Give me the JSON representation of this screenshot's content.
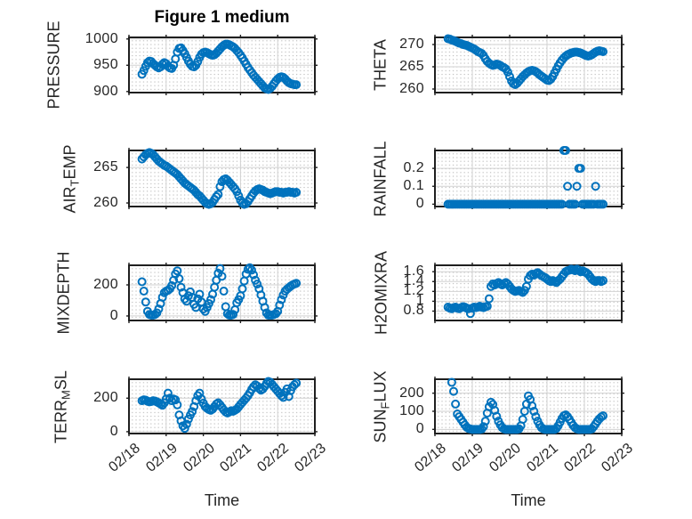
{
  "figure": {
    "title": "Figure 1 medium",
    "background": "#ffffff",
    "marker_color": "#0072BD",
    "axes_box_color": "#1f1f1f",
    "major_grid_color": "#d2d2d2",
    "minor_grid_dot_color": "#bcbcbc",
    "text_color": "#262626"
  },
  "x_axis": {
    "label": "Time",
    "tick_labels": [
      "02/18",
      "02/19",
      "02/20",
      "02/21",
      "02/22",
      "02/23"
    ],
    "range_days": [
      0,
      5
    ]
  },
  "chart_data": [
    {
      "type": "scatter",
      "title": "Figure 1 medium",
      "ylabel": "PRESSURE",
      "ylabel_segments": [
        {
          "text": "PRESSURE",
          "sub": false
        }
      ],
      "yticks": [
        900,
        950,
        1000
      ],
      "ytick_labels": [
        "900",
        "950",
        "1000"
      ],
      "ylim": [
        898,
        1003
      ],
      "x_start_day": 0.35,
      "x_step_day": 0.05,
      "values": [
        933,
        940,
        948,
        955,
        958,
        957,
        953,
        950,
        947,
        945,
        947,
        952,
        955,
        953,
        948,
        945,
        944,
        950,
        962,
        975,
        982,
        983,
        978,
        972,
        965,
        958,
        952,
        948,
        947,
        950,
        957,
        965,
        971,
        974,
        975,
        974,
        972,
        970,
        969,
        970,
        973,
        977,
        981,
        985,
        988,
        990,
        990,
        989,
        987,
        985,
        982,
        978,
        974,
        969,
        964,
        958,
        952,
        946,
        941,
        936,
        931,
        927,
        923,
        919,
        915,
        911,
        907,
        905,
        904,
        906,
        910,
        915,
        920,
        924,
        927,
        928,
        927,
        924,
        920,
        917,
        915,
        914,
        913,
        913
      ]
    },
    {
      "type": "scatter",
      "ylabel": "THETA",
      "ylabel_segments": [
        {
          "text": "THETA",
          "sub": false
        }
      ],
      "yticks": [
        260,
        265,
        270
      ],
      "ytick_labels": [
        "260",
        "265",
        "270"
      ],
      "ylim": [
        259.2,
        271.6
      ],
      "x_start_day": 0.35,
      "x_step_day": 0.05,
      "values": [
        271.3,
        271.2,
        271.0,
        270.9,
        270.7,
        270.5,
        270.3,
        270.2,
        270.0,
        269.9,
        269.8,
        269.6,
        269.4,
        269.2,
        269.0,
        268.7,
        268.4,
        268.2,
        268.0,
        267.5,
        266.8,
        266.2,
        265.8,
        265.5,
        265.3,
        265.4,
        265.6,
        265.5,
        265.3,
        265.0,
        264.8,
        264.5,
        263.8,
        262.8,
        261.8,
        261.2,
        261.0,
        261.3,
        261.8,
        262.3,
        262.8,
        263.2,
        263.6,
        263.9,
        264.1,
        264.2,
        264.1,
        263.9,
        263.6,
        263.2,
        262.9,
        262.6,
        262.3,
        262.0,
        261.9,
        262.2,
        262.8,
        263.6,
        264.4,
        265.2,
        265.9,
        266.5,
        267.0,
        267.4,
        267.7,
        267.9,
        268.1,
        268.2,
        268.3,
        268.3,
        268.2,
        268.1,
        267.9,
        267.7,
        267.5,
        267.4,
        267.5,
        267.7,
        268.0,
        268.3,
        268.5,
        268.6,
        268.5,
        268.4
      ]
    },
    {
      "type": "scatter",
      "ylabel": "AIR_TEMP",
      "ylabel_segments": [
        {
          "text": "AIR",
          "sub": false
        },
        {
          "text": "T",
          "sub": true
        },
        {
          "text": "EMP",
          "sub": false
        }
      ],
      "yticks": [
        260,
        265
      ],
      "ytick_labels": [
        "260",
        "265"
      ],
      "ylim": [
        259.5,
        267.4
      ],
      "x_start_day": 0.35,
      "x_step_day": 0.05,
      "values": [
        266.2,
        266.5,
        266.8,
        267.0,
        267.1,
        267.0,
        266.8,
        266.5,
        266.2,
        265.9,
        265.7,
        265.5,
        265.3,
        265.2,
        265.0,
        264.8,
        264.6,
        264.4,
        264.2,
        264.0,
        263.7,
        263.4,
        263.1,
        262.8,
        262.6,
        262.4,
        262.2,
        262.0,
        261.8,
        261.5,
        261.2,
        261.0,
        260.7,
        260.4,
        260.1,
        259.9,
        259.8,
        259.9,
        260.1,
        260.5,
        260.9,
        261.2,
        262.3,
        263.0,
        263.3,
        263.4,
        263.2,
        262.9,
        262.6,
        262.3,
        262.0,
        261.6,
        261.0,
        260.4,
        260.0,
        259.8,
        259.9,
        260.2,
        260.6,
        261.0,
        261.4,
        261.7,
        261.9,
        262.0,
        261.9,
        261.8,
        261.6,
        261.5,
        261.4,
        261.3,
        261.4,
        261.5,
        261.6,
        261.6,
        261.5,
        261.5,
        261.4,
        261.5,
        261.5,
        261.6,
        261.5,
        261.5,
        261.4,
        261.5
      ]
    },
    {
      "type": "scatter",
      "ylabel": "RAINFALL",
      "ylabel_segments": [
        {
          "text": "RAINFALL",
          "sub": false
        }
      ],
      "yticks": [
        0,
        0.1,
        0.2
      ],
      "ytick_labels": [
        "0",
        "0.1",
        "0.2"
      ],
      "ylim": [
        -0.013,
        0.3
      ],
      "x_start_day": 0.35,
      "x_step_day": 0.05,
      "values": [
        0,
        0,
        0,
        0,
        0,
        0,
        0,
        0,
        0,
        0,
        0,
        0,
        0,
        0,
        0,
        0,
        0,
        0,
        0,
        0,
        0,
        0,
        0,
        0,
        0,
        0,
        0,
        0,
        0,
        0,
        0,
        0,
        0,
        0,
        0,
        0,
        0,
        0,
        0,
        0,
        0,
        0,
        0,
        0,
        0,
        0,
        0,
        0,
        0,
        0,
        0,
        0,
        0,
        0,
        0,
        0,
        0,
        0,
        0,
        0,
        0,
        0,
        0.3,
        0.3,
        0.1,
        0,
        0,
        0,
        0,
        0.1,
        0.2,
        0.2,
        0,
        0,
        0,
        0,
        0,
        0,
        0,
        0.1,
        0,
        0,
        0,
        0
      ]
    },
    {
      "type": "scatter",
      "ylabel": "MIXDEPTH",
      "ylabel_segments": [
        {
          "text": "MIXDEPTH",
          "sub": false
        }
      ],
      "yticks": [
        0,
        200
      ],
      "ytick_labels": [
        "0",
        "200"
      ],
      "ylim": [
        -29,
        326
      ],
      "x_start_day": 0.35,
      "x_step_day": 0.05,
      "values": [
        220,
        160,
        90,
        30,
        10,
        5,
        5,
        10,
        20,
        45,
        80,
        120,
        150,
        160,
        165,
        175,
        195,
        230,
        270,
        290,
        240,
        185,
        150,
        110,
        95,
        130,
        155,
        120,
        75,
        55,
        110,
        140,
        90,
        45,
        30,
        55,
        80,
        105,
        140,
        185,
        230,
        275,
        305,
        255,
        160,
        60,
        15,
        5,
        5,
        10,
        40,
        85,
        105,
        130,
        175,
        225,
        270,
        300,
        310,
        295,
        265,
        230,
        205,
        175,
        135,
        95,
        55,
        20,
        5,
        5,
        5,
        10,
        15,
        30,
        70,
        105,
        135,
        160,
        172,
        182,
        192,
        200,
        205,
        210
      ]
    },
    {
      "type": "scatter",
      "ylabel": "H2OMIXRA",
      "ylabel_segments": [
        {
          "text": "H2OMIXRA",
          "sub": false
        }
      ],
      "yticks": [
        0.8,
        1,
        1.2,
        1.4,
        1.6
      ],
      "ytick_labels": [
        "0.8",
        "1",
        "1.2",
        "1.4",
        "1.6"
      ],
      "ylim": [
        0.61,
        1.73
      ],
      "x_start_day": 0.35,
      "x_step_day": 0.05,
      "values": [
        0.88,
        0.86,
        0.85,
        0.87,
        0.88,
        0.86,
        0.85,
        0.87,
        0.89,
        0.88,
        0.86,
        0.85,
        0.75,
        0.86,
        0.88,
        0.87,
        0.88,
        0.9,
        0.88,
        0.87,
        0.89,
        0.9,
        1.05,
        1.3,
        1.35,
        1.33,
        1.36,
        1.38,
        1.35,
        1.33,
        1.36,
        1.38,
        1.35,
        1.3,
        1.25,
        1.22,
        1.2,
        1.21,
        1.22,
        1.2,
        1.18,
        1.22,
        1.3,
        1.45,
        1.52,
        1.55,
        1.53,
        1.56,
        1.58,
        1.55,
        1.52,
        1.5,
        1.48,
        1.45,
        1.42,
        1.4,
        1.42,
        1.4,
        1.38,
        1.42,
        1.45,
        1.5,
        1.55,
        1.6,
        1.62,
        1.63,
        1.65,
        1.64,
        1.62,
        1.65,
        1.63,
        1.6,
        1.62,
        1.6,
        1.58,
        1.55,
        1.5,
        1.45,
        1.42,
        1.4,
        1.42,
        1.42,
        1.4,
        1.42
      ]
    },
    {
      "type": "scatter",
      "ylabel": "TERR_MSL",
      "ylabel_segments": [
        {
          "text": "TERR",
          "sub": false
        },
        {
          "text": "M",
          "sub": true
        },
        {
          "text": "SL",
          "sub": false
        }
      ],
      "yticks": [
        0,
        200
      ],
      "ytick_labels": [
        "0",
        "200"
      ],
      "ylim": [
        -11,
        313
      ],
      "x_start_day": 0.35,
      "x_step_day": 0.05,
      "values": [
        185,
        190,
        188,
        182,
        178,
        180,
        185,
        183,
        178,
        172,
        165,
        158,
        172,
        195,
        230,
        200,
        185,
        195,
        190,
        160,
        100,
        65,
        35,
        20,
        45,
        75,
        100,
        120,
        150,
        185,
        215,
        230,
        195,
        170,
        150,
        140,
        132,
        128,
        135,
        150,
        165,
        172,
        160,
        145,
        130,
        118,
        112,
        118,
        125,
        122,
        128,
        135,
        148,
        162,
        175,
        188,
        200,
        215,
        232,
        252,
        268,
        280,
        272,
        258,
        248,
        255,
        270,
        288,
        300,
        295,
        282,
        268,
        255,
        242,
        228,
        215,
        205,
        235,
        255,
        210,
        245,
        268,
        280,
        290
      ]
    },
    {
      "type": "scatter",
      "ylabel": "SUN_FLUX",
      "ylabel_segments": [
        {
          "text": "SUN",
          "sub": false
        },
        {
          "text": "F",
          "sub": true
        },
        {
          "text": "LUX",
          "sub": false
        }
      ],
      "yticks": [
        0,
        100,
        200
      ],
      "ytick_labels": [
        "0",
        "100",
        "200"
      ],
      "ylim": [
        -23,
        277
      ],
      "x_start_day": 0.35,
      "x_step_day": 0.05,
      "values": [
        null,
        null,
        260,
        210,
        140,
        85,
        70,
        55,
        40,
        25,
        12,
        5,
        2,
        0,
        0,
        0,
        0,
        0,
        2,
        15,
        45,
        90,
        125,
        150,
        138,
        105,
        72,
        45,
        25,
        10,
        3,
        0,
        0,
        0,
        0,
        0,
        0,
        0,
        3,
        20,
        55,
        100,
        140,
        185,
        165,
        130,
        100,
        70,
        45,
        25,
        10,
        3,
        0,
        0,
        0,
        0,
        0,
        0,
        5,
        20,
        40,
        60,
        75,
        80,
        70,
        55,
        38,
        22,
        10,
        3,
        0,
        0,
        0,
        0,
        0,
        0,
        0,
        3,
        15,
        30,
        45,
        58,
        68,
        75
      ]
    }
  ]
}
